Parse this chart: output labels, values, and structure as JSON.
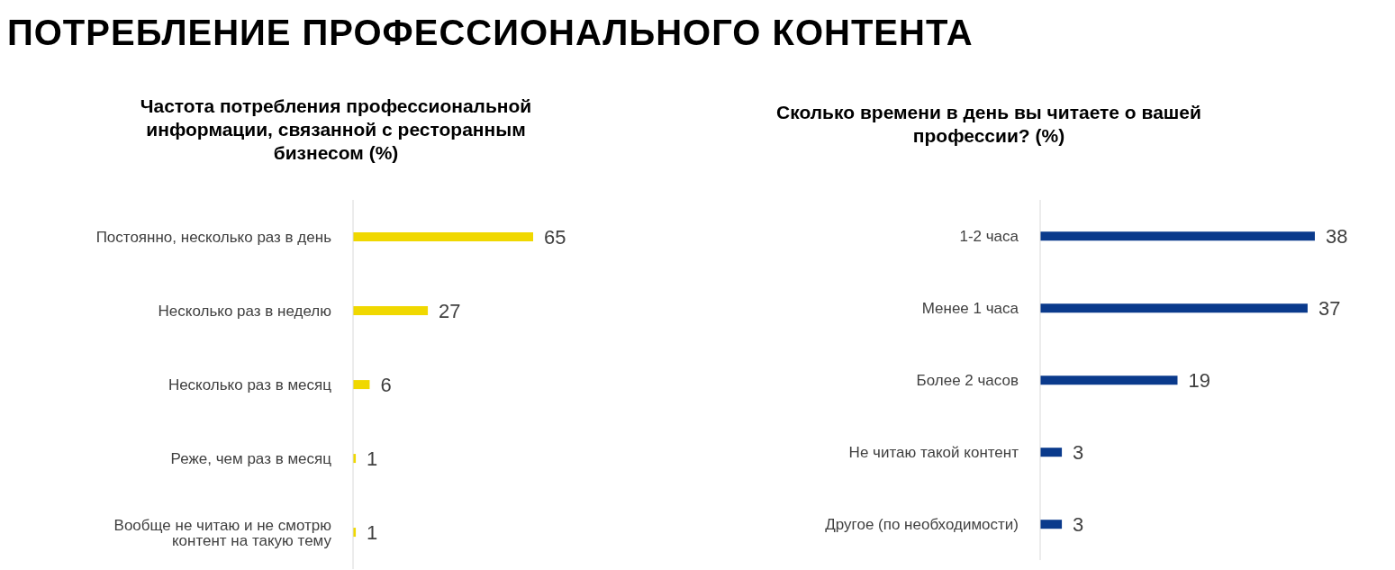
{
  "chart_data": [
    {
      "type": "bar",
      "orientation": "horizontal",
      "title": "ПОТРЕБЛЕНИЕ ПРОФЕССИОНАЛЬНОГО КОНТЕНТА",
      "subtitle": "Частота потребления профессиональной информации, связанной с ресторанным бизнесом (%)",
      "categories": [
        "Постоянно, несколько раз в день",
        "Несколько раз в неделю",
        "Несколько раз в месяц",
        "Реже, чем раз в месяц",
        "Вообще не читаю и не смотрю контент на такую тему"
      ],
      "values": [
        65,
        27,
        6,
        1,
        1
      ],
      "color": "#f0d800",
      "data_labels": true
    },
    {
      "type": "bar",
      "orientation": "horizontal",
      "title": "Сколько времени в день вы читаете о вашей профессии? (%)",
      "categories": [
        "1-2 часа",
        "Менее 1 часа",
        "Более 2 часов",
        "Не читаю такой контент",
        "Другое (по необходимости)"
      ],
      "values": [
        38,
        37,
        19,
        3,
        3
      ],
      "color": "#0a3a8c",
      "data_labels": true
    }
  ]
}
